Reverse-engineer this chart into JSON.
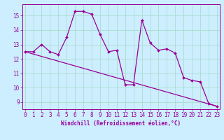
{
  "xlabel": "Windchill (Refroidissement éolien,°C)",
  "bg_color": "#cceeff",
  "line_color": "#990099",
  "grid_color": "#aaddcc",
  "hours": [
    0,
    1,
    2,
    3,
    4,
    5,
    6,
    7,
    8,
    9,
    10,
    11,
    12,
    13,
    14,
    15,
    16,
    17,
    18,
    19,
    20,
    21,
    22,
    23
  ],
  "windchill": [
    12.5,
    12.5,
    13.0,
    12.5,
    12.3,
    13.5,
    15.3,
    15.3,
    15.1,
    13.7,
    12.5,
    12.6,
    10.2,
    10.2,
    14.7,
    13.1,
    12.6,
    12.7,
    12.4,
    10.7,
    10.5,
    10.4,
    8.9,
    8.7
  ],
  "trend_start_x": 0,
  "trend_start_y": 12.5,
  "trend_end_x": 23,
  "trend_end_y": 8.7,
  "ylim": [
    8.5,
    15.8
  ],
  "xlim": [
    -0.3,
    23.3
  ],
  "yticks": [
    9,
    10,
    11,
    12,
    13,
    14,
    15
  ],
  "xticks": [
    0,
    1,
    2,
    3,
    4,
    5,
    6,
    7,
    8,
    9,
    10,
    11,
    12,
    13,
    14,
    15,
    16,
    17,
    18,
    19,
    20,
    21,
    22,
    23
  ],
  "tick_fontsize": 5.5,
  "label_fontsize": 5.5
}
